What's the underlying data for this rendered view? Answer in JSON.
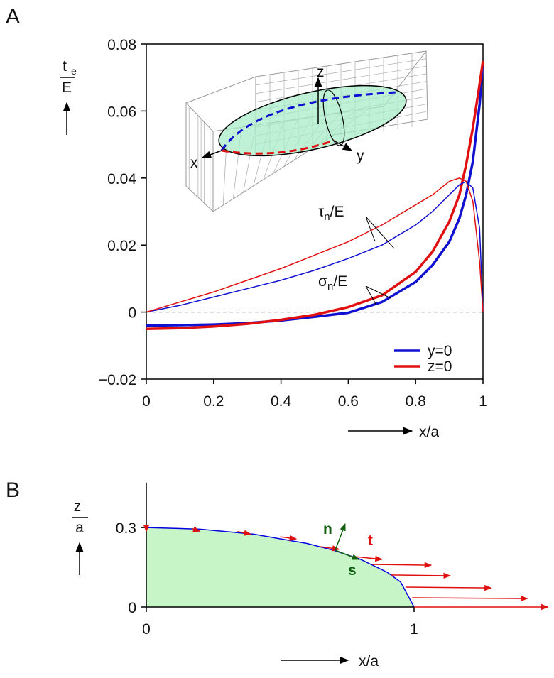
{
  "chart_data": [
    {
      "type": "line",
      "panel_label": "A",
      "y_label": {
        "text": "t",
        "sub": "e",
        "denominator": "E"
      },
      "x_label": "x/a",
      "x": [
        0,
        0.1,
        0.2,
        0.3,
        0.4,
        0.5,
        0.6,
        0.7,
        0.8,
        0.85,
        0.9,
        0.93,
        0.95,
        0.97,
        0.99,
        1
      ],
      "series": [
        {
          "name": "y=0",
          "color": "#1010d0",
          "values": [
            -0.004,
            -0.0039,
            -0.0037,
            -0.0033,
            -0.0025,
            -0.0014,
            -0.0002,
            0.003,
            0.009,
            0.014,
            0.021,
            0.028,
            0.035,
            0.045,
            0.062,
            0.075
          ]
        },
        {
          "name": "z=0",
          "color": "#e01010",
          "values": [
            -0.005,
            -0.0048,
            -0.0043,
            -0.0035,
            -0.0023,
            -0.0008,
            0.0015,
            0.005,
            0.012,
            0.018,
            0.027,
            0.035,
            0.044,
            0.055,
            0.068,
            0.075
          ]
        },
        {
          "color": "#1010d0",
          "values": [
            0,
            0.002,
            0.0045,
            0.007,
            0.0095,
            0.0125,
            0.016,
            0.02,
            0.026,
            0.03,
            0.035,
            0.038,
            0.039,
            0.037,
            0.025,
            0
          ]
        },
        {
          "color": "#e01010",
          "values": [
            0,
            0.003,
            0.006,
            0.0095,
            0.013,
            0.017,
            0.021,
            0.026,
            0.032,
            0.035,
            0.039,
            0.04,
            0.039,
            0.033,
            0.015,
            0
          ]
        }
      ],
      "annotations": [
        {
          "text": "τ",
          "sub": "n",
          "tail": "/E"
        },
        {
          "text": "σ",
          "sub": "n",
          "tail": "/E"
        }
      ],
      "inset_labels": [
        "z",
        "x",
        "y"
      ],
      "xlim": [
        0,
        1
      ],
      "xticks": [
        0,
        0.2,
        0.4,
        0.6,
        0.8,
        1
      ],
      "ylim": [
        -0.02,
        0.08
      ],
      "yticks": [
        {
          "value": -0.02,
          "label": "−0.02"
        },
        0,
        0.02,
        0.04,
        0.06,
        0.08
      ],
      "legend": "lower right"
    },
    {
      "type": "area",
      "panel_label": "B",
      "y_label": {
        "text": "z",
        "denominator": "a"
      },
      "x_label": "x/a",
      "x": [
        0,
        0.2,
        0.4,
        0.6,
        0.7,
        0.8,
        0.9,
        0.95,
        1
      ],
      "values": [
        0.3,
        0.294,
        0.275,
        0.24,
        0.214,
        0.18,
        0.131,
        0.094,
        0
      ],
      "color": "#0000e0",
      "fill": "#c8f5c8",
      "vectors": {
        "color": "#e01010",
        "x": [
          0,
          0.17,
          0.34,
          0.5,
          0.65,
          0.78,
          0.844,
          0.915,
          0.968,
          0.993,
          1
        ],
        "y": [
          0.3,
          0.296,
          0.285,
          0.265,
          0.228,
          0.19,
          0.161,
          0.121,
          0.075,
          0.035,
          0
        ],
        "dx": [
          0,
          0.03,
          0.05,
          0.06,
          0.07,
          0.1,
          0.22,
          0.22,
          0.32,
          0.43,
          0.5
        ],
        "dy": [
          -0.015,
          -0.01,
          -0.01,
          -0.008,
          -0.01,
          -0.01,
          -0.003,
          -0.003,
          -0.003,
          -0.003,
          0
        ]
      },
      "annotations": [
        "n",
        "s",
        "t"
      ],
      "xlim": [
        0,
        1.5
      ],
      "xticks": [
        0,
        1
      ],
      "ylim": [
        0,
        0.47
      ],
      "yticks": [
        0,
        0.3
      ]
    }
  ]
}
